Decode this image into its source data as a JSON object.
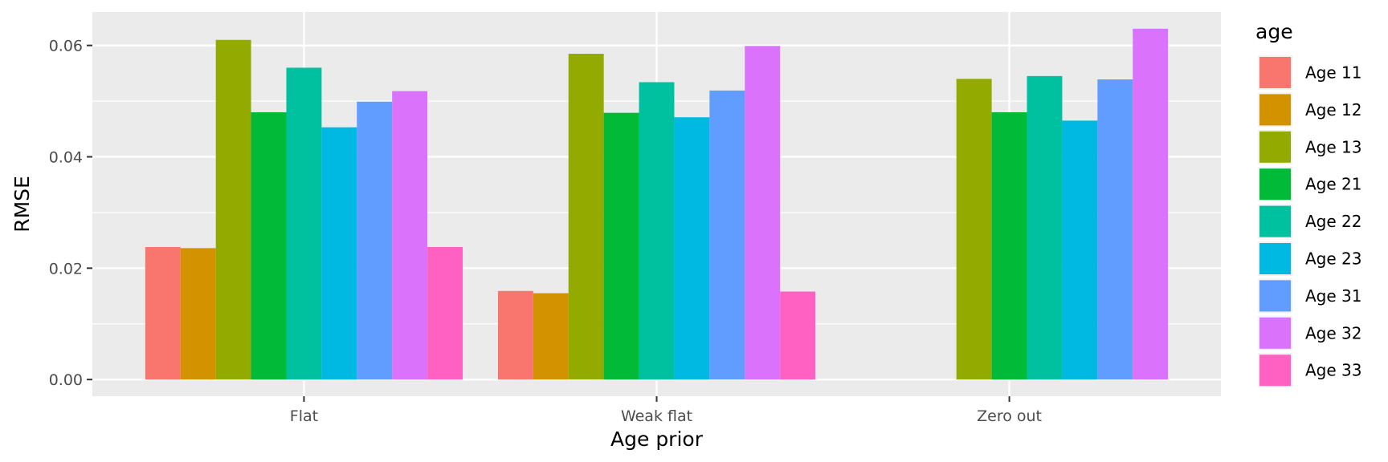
{
  "chart_data": {
    "type": "bar",
    "title": "",
    "xlabel": "Age prior",
    "ylabel": "RMSE",
    "ylim": [
      -0.003,
      0.066
    ],
    "yticks": [
      0.0,
      0.02,
      0.04,
      0.06
    ],
    "ytick_labels": [
      "0.00",
      "0.02",
      "0.04",
      "0.06"
    ],
    "grid": true,
    "legend_title": "age",
    "legend_position": "right",
    "categories": [
      "Flat",
      "Weak flat",
      "Zero out"
    ],
    "series": [
      {
        "name": "Age 11",
        "color": "#F8766D",
        "values": [
          0.0238,
          0.0159,
          null
        ]
      },
      {
        "name": "Age 12",
        "color": "#D39200",
        "values": [
          0.0236,
          0.0155,
          null
        ]
      },
      {
        "name": "Age 13",
        "color": "#93AA00",
        "values": [
          0.061,
          0.0585,
          0.054
        ]
      },
      {
        "name": "Age 21",
        "color": "#00BA38",
        "values": [
          0.048,
          0.0479,
          0.048
        ]
      },
      {
        "name": "Age 22",
        "color": "#00C19F",
        "values": [
          0.056,
          0.0534,
          0.0545
        ]
      },
      {
        "name": "Age 23",
        "color": "#00B9E3",
        "values": [
          0.0453,
          0.0471,
          0.0465
        ]
      },
      {
        "name": "Age 31",
        "color": "#619CFF",
        "values": [
          0.0499,
          0.0519,
          0.0539
        ]
      },
      {
        "name": "Age 32",
        "color": "#DB72FB",
        "values": [
          0.0518,
          0.0599,
          0.063
        ]
      },
      {
        "name": "Age 33",
        "color": "#FF61C3",
        "values": [
          0.0238,
          0.0158,
          null
        ]
      }
    ]
  }
}
